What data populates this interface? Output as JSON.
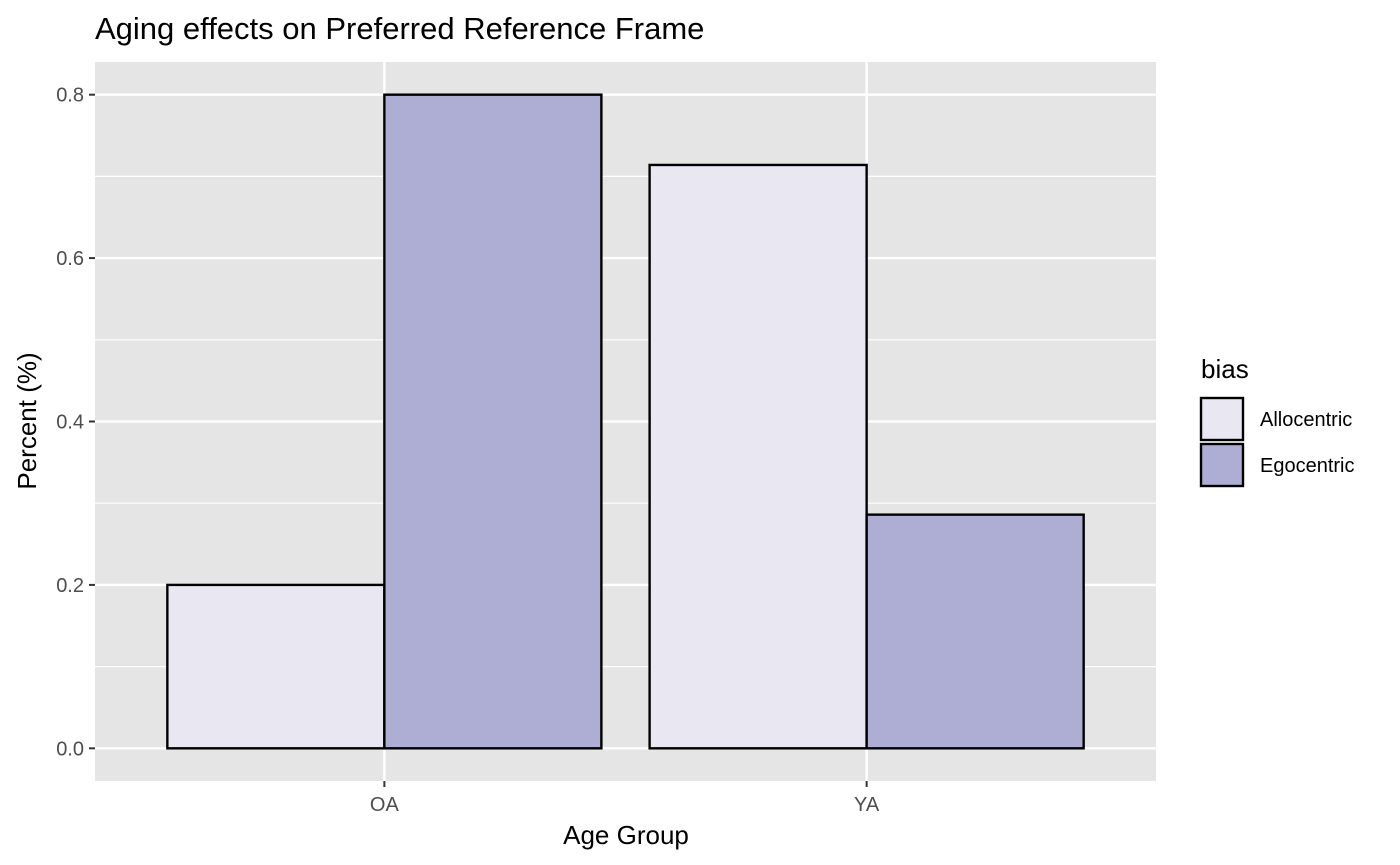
{
  "chart_data": {
    "type": "bar",
    "title": "Aging effects on Preferred Reference Frame",
    "xlabel": "Age Group",
    "ylabel": "Percent (%)",
    "categories": [
      "OA",
      "YA"
    ],
    "series": [
      {
        "name": "Allocentric",
        "values": [
          0.2,
          0.714
        ],
        "color": "#e9e7f2"
      },
      {
        "name": "Egocentric",
        "values": [
          0.8,
          0.286
        ],
        "color": "#aeaed4"
      }
    ],
    "ylim": [
      -0.04,
      0.84
    ],
    "yticks": [
      "0.0",
      "0.2",
      "0.4",
      "0.6",
      "0.8"
    ],
    "grid": true,
    "legend": {
      "title": "bias",
      "position": "right"
    },
    "panel_color": "#e5e5e5",
    "bar_outline_color": "#000000"
  }
}
